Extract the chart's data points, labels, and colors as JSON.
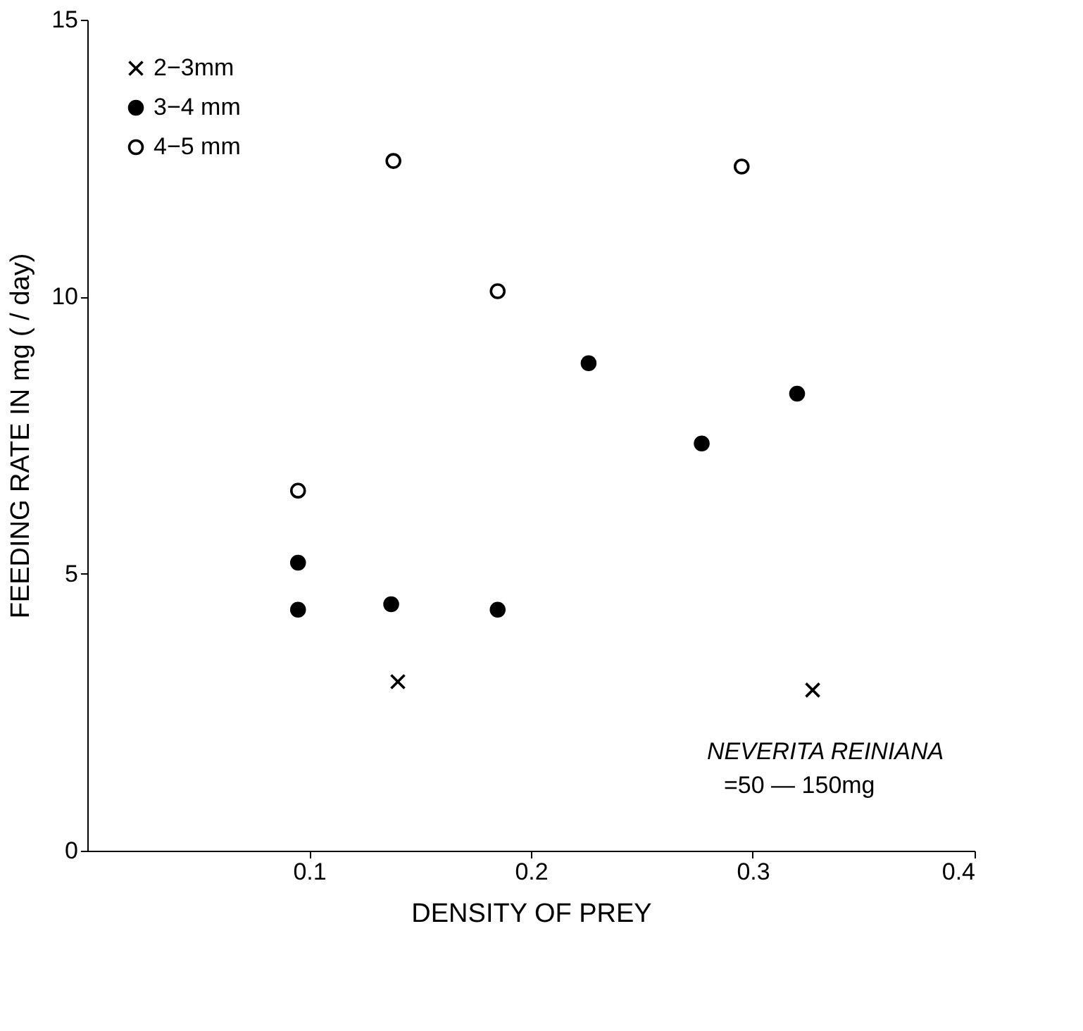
{
  "chart_data": {
    "type": "scatter",
    "xlabel": "DENSITY OF PREY",
    "ylabel": "FEEDING RATE IN mg   ( / day)",
    "xlim": [
      0,
      0.4
    ],
    "xticks": [
      0.1,
      0.2,
      0.3,
      0.4
    ],
    "ylim": [
      0,
      15
    ],
    "yticks": [
      0,
      5,
      10,
      15
    ],
    "grid": false,
    "legend": "top left",
    "series": [
      {
        "name": "2−3mm",
        "color": "#000000",
        "marker": "cross",
        "x": [
          0.14,
          0.327
        ],
        "values": [
          3.05,
          2.9
        ]
      },
      {
        "name": "3−4 mm",
        "color": "#000000",
        "marker": "circle",
        "x": [
          0.095,
          0.095,
          0.137,
          0.185,
          0.226,
          0.277,
          0.32
        ],
        "values": [
          5.2,
          4.35,
          4.45,
          4.35,
          8.8,
          7.35,
          8.25
        ]
      },
      {
        "name": "4−5 mm",
        "color": "#ffffff",
        "marker": "circle",
        "x": [
          0.095,
          0.138,
          0.185,
          0.295
        ],
        "values": [
          6.5,
          12.45,
          10.1,
          12.35
        ]
      }
    ],
    "annotations": [
      "NEVERITA REINIANA",
      "=50 — 150mg"
    ]
  }
}
